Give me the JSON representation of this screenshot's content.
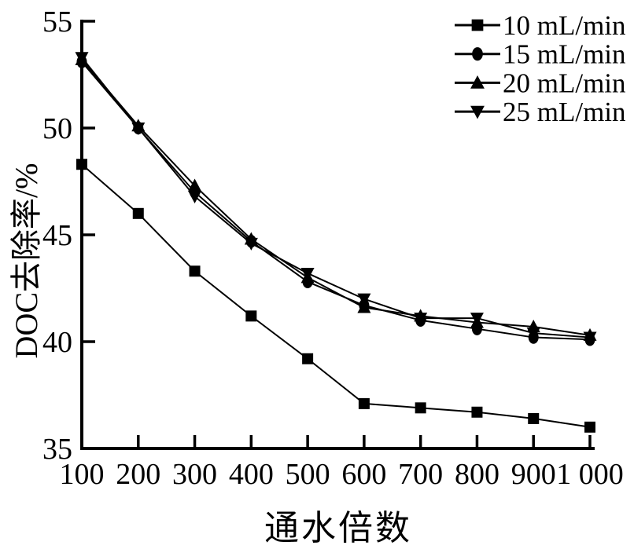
{
  "chart_data": {
    "type": "line",
    "title": "",
    "xlabel": "通水倍数",
    "ylabel": "DOC去除率/%",
    "x": [
      100,
      200,
      300,
      400,
      500,
      600,
      700,
      800,
      900,
      1000
    ],
    "x_tick_labels": [
      "100",
      "200",
      "300",
      "400",
      "500",
      "600",
      "700",
      "800",
      "900",
      "1 000"
    ],
    "xlim": [
      100,
      1000
    ],
    "ylim": [
      35,
      55
    ],
    "y_ticks": [
      35,
      40,
      45,
      50,
      55
    ],
    "y_tick_labels": [
      "35",
      "40",
      "45",
      "50",
      "55"
    ],
    "grid": false,
    "legend_position": "top-right",
    "line_color": "#000000",
    "background_color": "#ffffff",
    "series": [
      {
        "name": "10 mL/min",
        "marker": "square",
        "values": [
          48.3,
          46.0,
          43.3,
          41.2,
          39.2,
          37.1,
          36.9,
          36.7,
          36.4,
          36.0
        ]
      },
      {
        "name": "15 mL/min",
        "marker": "circle",
        "values": [
          53.1,
          50.0,
          47.0,
          44.7,
          42.8,
          41.7,
          41.0,
          40.6,
          40.2,
          40.1
        ]
      },
      {
        "name": "20 mL/min",
        "marker": "triangle-up",
        "values": [
          53.2,
          50.1,
          47.3,
          44.8,
          43.0,
          41.6,
          41.2,
          40.9,
          40.7,
          40.3
        ]
      },
      {
        "name": "25 mL/min",
        "marker": "triangle-down",
        "values": [
          53.3,
          50.0,
          46.8,
          44.6,
          43.2,
          42.0,
          41.1,
          41.1,
          40.4,
          40.2
        ]
      }
    ]
  }
}
